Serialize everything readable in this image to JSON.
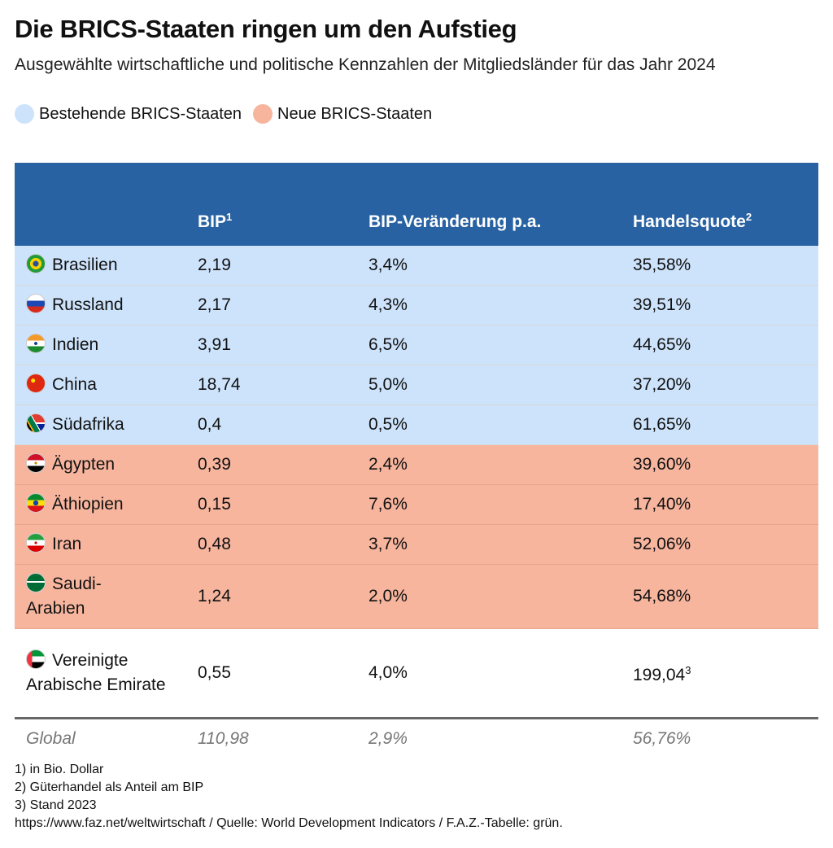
{
  "title": "Die BRICS-Staaten ringen um den Aufstieg",
  "subtitle": "Ausgewählte wirtschaftliche und politische Kennzahlen der Mitgliedsländer für das Jahr 2024",
  "legend": [
    {
      "label": "Bestehende BRICS-Staaten",
      "color": "#cde3fb"
    },
    {
      "label": "Neue BRICS-Staaten",
      "color": "#f7b59e"
    }
  ],
  "chart_data": {
    "type": "table",
    "columns": [
      "",
      "BIP",
      "BIP-Veränderung p.a.",
      "Handelsquote"
    ],
    "column_sup": [
      "",
      "1",
      "",
      "2"
    ],
    "rows": [
      {
        "country": "Brasilien",
        "group": "old",
        "bip": "2,19",
        "change": "3,4%",
        "trade": "35,58%"
      },
      {
        "country": "Russland",
        "group": "old",
        "bip": "2,17",
        "change": "4,3%",
        "trade": "39,51%"
      },
      {
        "country": "Indien",
        "group": "old",
        "bip": "3,91",
        "change": "6,5%",
        "trade": "44,65%"
      },
      {
        "country": "China",
        "group": "old",
        "bip": "18,74",
        "change": "5,0%",
        "trade": "37,20%"
      },
      {
        "country": "Südafrika",
        "group": "old",
        "bip": "0,4",
        "change": "0,5%",
        "trade": "61,65%"
      },
      {
        "country": "Ägypten",
        "group": "new",
        "bip": "0,39",
        "change": "2,4%",
        "trade": "39,60%"
      },
      {
        "country": "Äthiopien",
        "group": "new",
        "bip": "0,15",
        "change": "7,6%",
        "trade": "17,40%"
      },
      {
        "country": "Iran",
        "group": "new",
        "bip": "0,48",
        "change": "3,7%",
        "trade": "52,06%"
      },
      {
        "country": "Saudi-Arabien",
        "group": "new",
        "bip": "1,24",
        "change": "2,0%",
        "trade": "54,68%"
      },
      {
        "country": "Vereinigte Arabische Emirate",
        "group": "new",
        "bip": "0,55",
        "change": "4,0%",
        "trade": "199,04",
        "trade_sup": "3"
      }
    ],
    "global": {
      "label": "Global",
      "bip": "110,98",
      "change": "2,9%",
      "trade": "56,76%"
    }
  },
  "footnotes": [
    "1) in Bio. Dollar",
    "2) Güterhandel als Anteil am BIP",
    "3) Stand 2023",
    "https://www.faz.net/weltwirtschaft / Quelle: World Development Indicators / F.A.Z.-Tabelle: grün."
  ]
}
